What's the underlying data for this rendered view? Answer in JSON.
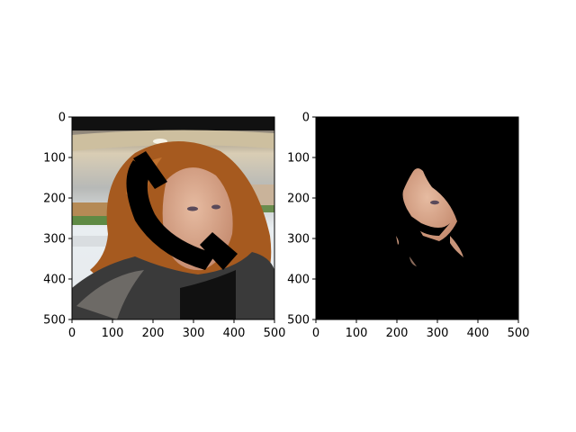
{
  "figure": {
    "panels": [
      {
        "id": "left",
        "content": "original-image-with-black-mask-strokes",
        "xticks": [
          "0",
          "100",
          "200",
          "300",
          "400",
          "500"
        ],
        "yticks": [
          "0",
          "100",
          "200",
          "300",
          "400",
          "500"
        ]
      },
      {
        "id": "right",
        "content": "segmented-face-region-on-black",
        "xticks": [
          "0",
          "100",
          "200",
          "300",
          "400",
          "500"
        ],
        "yticks": [
          "0",
          "100",
          "200",
          "300",
          "400",
          "500"
        ]
      }
    ]
  },
  "colors": {
    "background": "#ffffff",
    "mask": "#000000",
    "hair": "#a85a20",
    "skin": "#d8ab92",
    "fur": "#3a3a3a",
    "ceiling": "#d7cbb3",
    "field_green": "#5f8a44"
  }
}
